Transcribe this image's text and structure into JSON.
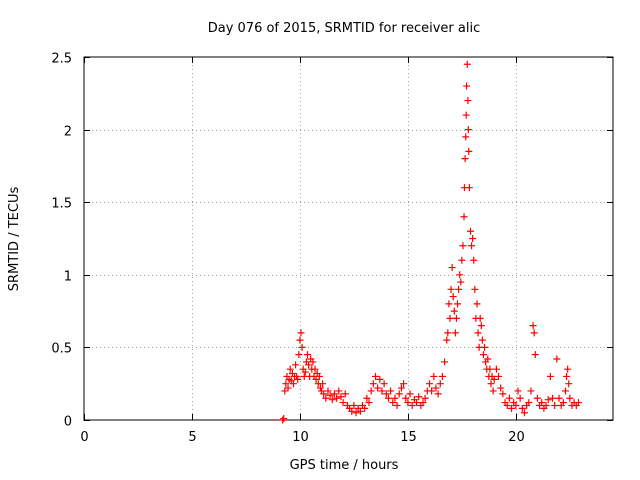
{
  "chart_data": {
    "type": "scatter",
    "title": "Day 076 of 2015, SRMTID for receiver alic",
    "xlabel": "GPS time / hours",
    "ylabel": "SRMTID / TECUs",
    "xlim": [
      0,
      24.5
    ],
    "ylim": [
      0,
      2.5
    ],
    "xticks": [
      0,
      5,
      10,
      15,
      20
    ],
    "xtick_labels": [
      "0",
      "5",
      "10",
      "15",
      "20"
    ],
    "yticks": [
      0,
      0.5,
      1,
      1.5,
      2,
      2.5
    ],
    "ytick_labels": [
      "0",
      "0.5",
      "1",
      "1.5",
      "2",
      "2.5"
    ],
    "grid": true,
    "marker": "+",
    "series": [
      {
        "name": "SRMTID",
        "color": "#ff0000",
        "points": [
          [
            9.2,
            0.0
          ],
          [
            9.25,
            0.01
          ],
          [
            9.3,
            0.2
          ],
          [
            9.35,
            0.25
          ],
          [
            9.4,
            0.3
          ],
          [
            9.45,
            0.22
          ],
          [
            9.5,
            0.28
          ],
          [
            9.55,
            0.35
          ],
          [
            9.6,
            0.27
          ],
          [
            9.65,
            0.32
          ],
          [
            9.7,
            0.25
          ],
          [
            9.75,
            0.3
          ],
          [
            9.8,
            0.38
          ],
          [
            9.85,
            0.3
          ],
          [
            9.9,
            0.28
          ],
          [
            9.95,
            0.45
          ],
          [
            10.0,
            0.55
          ],
          [
            10.05,
            0.6
          ],
          [
            10.1,
            0.5
          ],
          [
            10.15,
            0.35
          ],
          [
            10.2,
            0.3
          ],
          [
            10.25,
            0.33
          ],
          [
            10.3,
            0.4
          ],
          [
            10.35,
            0.45
          ],
          [
            10.4,
            0.38
          ],
          [
            10.45,
            0.3
          ],
          [
            10.5,
            0.42
          ],
          [
            10.55,
            0.35
          ],
          [
            10.6,
            0.4
          ],
          [
            10.65,
            0.3
          ],
          [
            10.7,
            0.35
          ],
          [
            10.75,
            0.28
          ],
          [
            10.8,
            0.32
          ],
          [
            10.85,
            0.25
          ],
          [
            10.9,
            0.3
          ],
          [
            10.95,
            0.22
          ],
          [
            11.0,
            0.2
          ],
          [
            11.05,
            0.25
          ],
          [
            11.1,
            0.18
          ],
          [
            11.2,
            0.15
          ],
          [
            11.3,
            0.2
          ],
          [
            11.4,
            0.17
          ],
          [
            11.5,
            0.14
          ],
          [
            11.6,
            0.18
          ],
          [
            11.7,
            0.15
          ],
          [
            11.8,
            0.2
          ],
          [
            11.9,
            0.16
          ],
          [
            12.0,
            0.12
          ],
          [
            12.1,
            0.18
          ],
          [
            12.2,
            0.1
          ],
          [
            12.3,
            0.08
          ],
          [
            12.4,
            0.06
          ],
          [
            12.5,
            0.1
          ],
          [
            12.6,
            0.05
          ],
          [
            12.7,
            0.08
          ],
          [
            12.8,
            0.06
          ],
          [
            12.9,
            0.1
          ],
          [
            13.0,
            0.08
          ],
          [
            13.1,
            0.15
          ],
          [
            13.2,
            0.12
          ],
          [
            13.3,
            0.2
          ],
          [
            13.4,
            0.25
          ],
          [
            13.5,
            0.3
          ],
          [
            13.6,
            0.22
          ],
          [
            13.7,
            0.28
          ],
          [
            13.8,
            0.2
          ],
          [
            13.9,
            0.25
          ],
          [
            14.0,
            0.18
          ],
          [
            14.1,
            0.15
          ],
          [
            14.2,
            0.2
          ],
          [
            14.3,
            0.12
          ],
          [
            14.4,
            0.15
          ],
          [
            14.5,
            0.1
          ],
          [
            14.6,
            0.18
          ],
          [
            14.7,
            0.22
          ],
          [
            14.8,
            0.25
          ],
          [
            14.9,
            0.15
          ],
          [
            15.0,
            0.12
          ],
          [
            15.1,
            0.18
          ],
          [
            15.2,
            0.1
          ],
          [
            15.3,
            0.14
          ],
          [
            15.4,
            0.12
          ],
          [
            15.5,
            0.16
          ],
          [
            15.6,
            0.1
          ],
          [
            15.7,
            0.12
          ],
          [
            15.8,
            0.15
          ],
          [
            15.9,
            0.2
          ],
          [
            16.0,
            0.25
          ],
          [
            16.1,
            0.2
          ],
          [
            16.2,
            0.3
          ],
          [
            16.3,
            0.22
          ],
          [
            16.4,
            0.18
          ],
          [
            16.5,
            0.25
          ],
          [
            16.6,
            0.3
          ],
          [
            16.7,
            0.4
          ],
          [
            16.8,
            0.55
          ],
          [
            16.85,
            0.6
          ],
          [
            16.9,
            0.8
          ],
          [
            16.95,
            0.7
          ],
          [
            17.0,
            0.9
          ],
          [
            17.05,
            1.05
          ],
          [
            17.1,
            0.85
          ],
          [
            17.15,
            0.75
          ],
          [
            17.2,
            0.6
          ],
          [
            17.25,
            0.7
          ],
          [
            17.3,
            0.8
          ],
          [
            17.35,
            0.9
          ],
          [
            17.4,
            1.0
          ],
          [
            17.45,
            0.95
          ],
          [
            17.5,
            1.1
          ],
          [
            17.55,
            1.2
          ],
          [
            17.6,
            1.4
          ],
          [
            17.62,
            1.6
          ],
          [
            17.65,
            1.8
          ],
          [
            17.68,
            1.95
          ],
          [
            17.7,
            2.1
          ],
          [
            17.72,
            2.3
          ],
          [
            17.75,
            2.45
          ],
          [
            17.78,
            2.2
          ],
          [
            17.8,
            2.0
          ],
          [
            17.82,
            1.85
          ],
          [
            17.85,
            1.6
          ],
          [
            17.9,
            1.3
          ],
          [
            17.95,
            1.2
          ],
          [
            18.0,
            1.25
          ],
          [
            18.05,
            1.1
          ],
          [
            18.1,
            0.9
          ],
          [
            18.15,
            0.7
          ],
          [
            18.2,
            0.8
          ],
          [
            18.25,
            0.6
          ],
          [
            18.3,
            0.5
          ],
          [
            18.35,
            0.7
          ],
          [
            18.4,
            0.65
          ],
          [
            18.45,
            0.55
          ],
          [
            18.5,
            0.45
          ],
          [
            18.55,
            0.5
          ],
          [
            18.6,
            0.4
          ],
          [
            18.65,
            0.35
          ],
          [
            18.7,
            0.42
          ],
          [
            18.75,
            0.3
          ],
          [
            18.8,
            0.35
          ],
          [
            18.85,
            0.25
          ],
          [
            18.9,
            0.3
          ],
          [
            18.95,
            0.2
          ],
          [
            19.0,
            0.28
          ],
          [
            19.1,
            0.35
          ],
          [
            19.2,
            0.3
          ],
          [
            19.3,
            0.22
          ],
          [
            19.4,
            0.18
          ],
          [
            19.5,
            0.12
          ],
          [
            19.6,
            0.1
          ],
          [
            19.7,
            0.15
          ],
          [
            19.8,
            0.08
          ],
          [
            19.9,
            0.12
          ],
          [
            20.0,
            0.1
          ],
          [
            20.1,
            0.2
          ],
          [
            20.2,
            0.15
          ],
          [
            20.3,
            0.08
          ],
          [
            20.4,
            0.05
          ],
          [
            20.5,
            0.1
          ],
          [
            20.6,
            0.12
          ],
          [
            20.7,
            0.2
          ],
          [
            20.8,
            0.65
          ],
          [
            20.85,
            0.6
          ],
          [
            20.9,
            0.45
          ],
          [
            21.0,
            0.15
          ],
          [
            21.1,
            0.1
          ],
          [
            21.2,
            0.12
          ],
          [
            21.3,
            0.08
          ],
          [
            21.4,
            0.1
          ],
          [
            21.5,
            0.14
          ],
          [
            21.6,
            0.3
          ],
          [
            21.7,
            0.15
          ],
          [
            21.8,
            0.1
          ],
          [
            21.9,
            0.42
          ],
          [
            22.0,
            0.15
          ],
          [
            22.1,
            0.1
          ],
          [
            22.2,
            0.12
          ],
          [
            22.3,
            0.2
          ],
          [
            22.35,
            0.3
          ],
          [
            22.4,
            0.35
          ],
          [
            22.45,
            0.25
          ],
          [
            22.5,
            0.15
          ],
          [
            22.6,
            0.1
          ],
          [
            22.7,
            0.12
          ],
          [
            22.8,
            0.1
          ],
          [
            22.9,
            0.12
          ]
        ]
      }
    ]
  }
}
